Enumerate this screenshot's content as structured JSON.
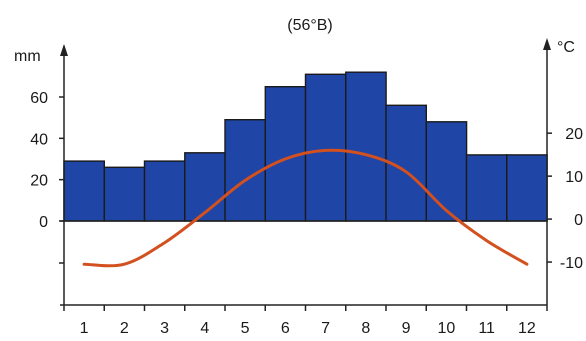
{
  "chart_data": {
    "type": "bar+line",
    "title": "(56°B)",
    "categories": [
      "1",
      "2",
      "3",
      "4",
      "5",
      "6",
      "7",
      "8",
      "9",
      "10",
      "11",
      "12"
    ],
    "series": [
      {
        "type": "bar",
        "axis": "left",
        "values": [
          29,
          26,
          29,
          33,
          49,
          65,
          71,
          72,
          56,
          48,
          32,
          32
        ]
      },
      {
        "type": "line",
        "axis": "right",
        "values": [
          -10.5,
          -10.5,
          -5.5,
          1.5,
          9,
          14,
          16,
          15,
          11,
          2,
          -5,
          -10.5
        ]
      }
    ],
    "y_left": {
      "unit": "mm",
      "ticks": [
        0,
        20,
        40,
        60
      ],
      "range": [
        -40,
        75
      ]
    },
    "y_right": {
      "unit": "°C",
      "ticks": [
        -10,
        0,
        10,
        20
      ],
      "range": [
        -20,
        37.5
      ]
    },
    "grid": false,
    "colors": {
      "bar": "#1f45a6",
      "bar_stroke": "#1a1a1a",
      "line": "#d3501f",
      "axis": "#222222"
    }
  }
}
